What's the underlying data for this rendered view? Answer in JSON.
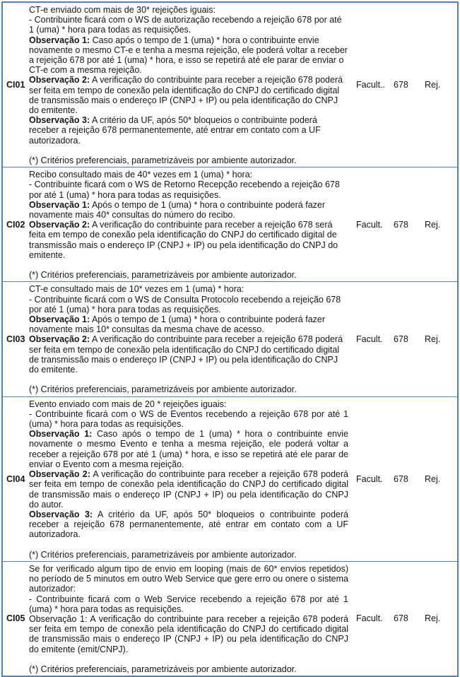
{
  "document": {
    "border_color": "#4f81bd",
    "text_color": "#161616",
    "background_color": "#ffffff"
  },
  "table": {
    "rows": [
      {
        "id": "CI01",
        "description": [
          {
            "text": "CT-e enviado com mais de 30* rejeições iguais:"
          },
          {
            "text": "- Contribuinte ficará com o WS de autorização recebendo a rejeição 678 por até 1 (uma) * hora para todas as requisições."
          },
          {
            "bold": "Observação 1:",
            "text": " Caso após o tempo de 1 (uma) * hora o contribuinte envie novamente o mesmo CT-e e tenha a mesma rejeição, ele poderá voltar a receber a rejeição 678 por até 1 (uma) * hora, e isso se repetirá até ele parar de enviar o CT-e com a mesma rejeição."
          },
          {
            "bold": "Observação 2:",
            "text": " A verificação do contribuinte para receber a rejeição 678 poderá ser feita em tempo de conexão pela identificação do CNPJ do certificado digital de transmissão mais o endereço IP (CNPJ + IP) ou pela identificação do CNPJ do emitente."
          },
          {
            "bold": "Observação 3:",
            "text": " A critério da UF, após 50* bloqueios o contribuinte poderá receber a rejeição 678 permanentemente, até entrar em contato com a UF autorizadora."
          },
          {
            "text": ""
          },
          {
            "text": "(*) Critérios preferenciais, parametrizáveis por ambiente autorizador."
          }
        ],
        "facultative": "Facult..",
        "code": "678",
        "action": "Rej."
      },
      {
        "id": "CI02",
        "description": [
          {
            "text": "Recibo consultado mais de 40* vezes em 1 (uma) * hora:"
          },
          {
            "text": "- Contribuinte ficará com o WS de Retorno Recepção recebendo a rejeição 678 por até 1 (uma) * hora para todas as requisições."
          },
          {
            "bold": "Observação 1:",
            "text": " Após o tempo de 1 (uma) * hora o contribuinte poderá fazer novamente mais 40* consultas do número do recibo."
          },
          {
            "bold": "Observação 2:",
            "text": " A verificação do contribuinte para receber a rejeição 678 será feita em tempo de conexão pela identificação do CNPJ do certificado digital de transmissão mais o endereço IP (CNPJ + IP) ou pela identificação do CNPJ do emitente."
          },
          {
            "text": ""
          },
          {
            "text": "(*) Critérios preferenciais, parametrizáveis por ambiente autorizador."
          }
        ],
        "facultative": "Facult.",
        "code": "678",
        "action": "Rej."
      },
      {
        "id": "CI03",
        "description": [
          {
            "text": "CT-e consultado mais de 10* vezes em 1 (uma) * hora:"
          },
          {
            "text": "- Contribuinte ficará com o WS de Consulta Protocolo recebendo a rejeição 678 por até 1 (uma) * hora para todas as requisições."
          },
          {
            "bold": "Observação 1:",
            "text": " Após o tempo de 1 (uma) * hora o contribuinte poderá fazer novamente mais 10* consultas da mesma chave de acesso."
          },
          {
            "bold": "Observação 2:",
            "text": " A verificação do contribuinte para receber a rejeição 678 poderá ser feita em tempo de conexão pela identificação do CNPJ do certificado digital de transmissão mais o endereço IP (CNPJ + IP) ou pela identificação do CNPJ do emitente."
          },
          {
            "text": ""
          },
          {
            "text": "(*) Critérios preferenciais, parametrizáveis por ambiente autorizador."
          }
        ],
        "facultative": "Facult.",
        "code": "678",
        "action": "Rej."
      },
      {
        "id": "CI04",
        "description": [
          {
            "text": "Evento enviado com mais de 20 * rejeições iguais:"
          },
          {
            "text": "- Contribuinte ficará com o WS de Eventos recebendo a rejeição 678 por até 1 (uma) * hora para todas as requisições."
          },
          {
            "bold": "Observação 1:",
            "text": " Caso após o tempo de 1 (uma) * hora o contribuinte envie novamente o mesmo Evento e tenha a mesma rejeição, ele poderá voltar a receber a rejeição 678 por até 1 (uma) * hora, e isso se repetirá até ele parar de enviar o Evento com a mesma rejeição."
          },
          {
            "bold": "Observação 2:",
            "text": " A verificação do contribuinte para receber a rejeição 678 poderá ser feita em tempo de conexão pela identificação do CNPJ do certificado digital de transmissão mais o endereço IP (CNPJ + IP) ou pela identificação do CNPJ do autor."
          },
          {
            "bold": "Observação 3:",
            "text": " A critério da UF, após 50* bloqueios o contribuinte poderá receber a rejeição 678 permanentemente, até entrar em contato com a UF autorizadora."
          },
          {
            "text": ""
          },
          {
            "text": "(*) Critérios preferenciais, parametrizáveis por ambiente autorizador."
          }
        ],
        "facultative": "Facult.",
        "code": "678",
        "action": "Rej."
      },
      {
        "id": "CI05",
        "description": [
          {
            "text": "Se for verificado algum tipo de envio em looping (mais de 60* envios repetidos) no período de 5 minutos em outro Web Service que gere erro ou onere o sistema autorizador:"
          },
          {
            "text": "- Contribuinte ficará com o Web Service recebendo a rejeição 678 por até 1 (uma) * hora para todas as requisições."
          },
          {
            "text": "Observação 1: A verificação do contribuinte para receber a rejeição 678 poderá ser feita em tempo de conexão pela identificação do CNPJ do certificado digital de transmissão mais o endereço IP (CNPJ + IP) ou pela identificação do CNPJ do emitente (emit/CNPJ)."
          },
          {
            "text": ""
          },
          {
            "text": "(*) Critérios preferenciais, parametrizáveis por ambiente autorizador."
          }
        ],
        "facultative": "Facult.",
        "code": "678",
        "action": "Rej."
      }
    ]
  }
}
